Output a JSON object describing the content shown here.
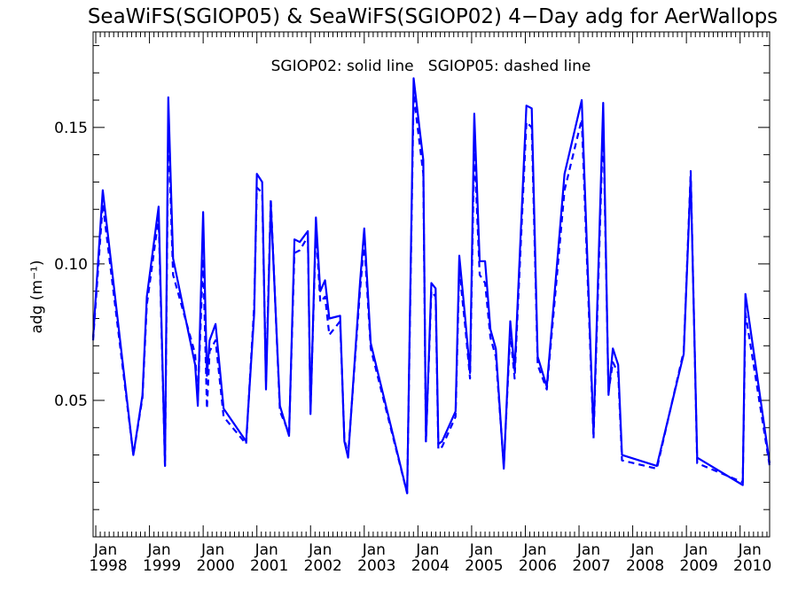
{
  "chart_data": {
    "type": "line",
    "title": "SeaWiFS(SGIOP05) & SeaWiFS(SGIOP02) 4−Day adg for AerWallops",
    "ylabel": "adg (m⁻¹)",
    "xlabel": "",
    "annotation": "SGIOP02: solid line   SGIOP05: dashed line",
    "ylim": [
      0.0,
      0.185
    ],
    "xlim": [
      1997.95,
      2010.55
    ],
    "yticks": [
      {
        "value": 0.05,
        "label": "0.05"
      },
      {
        "value": 0.1,
        "label": "0.10"
      },
      {
        "value": 0.15,
        "label": "0.15"
      }
    ],
    "xticks": [
      {
        "value": 1998,
        "month": "Jan",
        "year": "1998"
      },
      {
        "value": 1999,
        "month": "Jan",
        "year": "1999"
      },
      {
        "value": 2000,
        "month": "Jan",
        "year": "2000"
      },
      {
        "value": 2001,
        "month": "Jan",
        "year": "2001"
      },
      {
        "value": 2002,
        "month": "Jan",
        "year": "2002"
      },
      {
        "value": 2003,
        "month": "Jan",
        "year": "2003"
      },
      {
        "value": 2004,
        "month": "Jan",
        "year": "2004"
      },
      {
        "value": 2005,
        "month": "Jan",
        "year": "2005"
      },
      {
        "value": 2006,
        "month": "Jan",
        "year": "2006"
      },
      {
        "value": 2007,
        "month": "Jan",
        "year": "2007"
      },
      {
        "value": 2008,
        "month": "Jan",
        "year": "2008"
      },
      {
        "value": 2009,
        "month": "Jan",
        "year": "2009"
      },
      {
        "value": 2010,
        "month": "Jan",
        "year": "2010"
      }
    ],
    "line_color": "#0000ff",
    "series": [
      {
        "style": "solid",
        "points": [
          [
            1997.95,
            0.073
          ],
          [
            1998.13,
            0.127
          ],
          [
            1998.7,
            0.03
          ],
          [
            1998.87,
            0.052
          ],
          [
            1998.95,
            0.088
          ],
          [
            1999.17,
            0.121
          ],
          [
            1999.29,
            0.026
          ],
          [
            1999.35,
            0.161
          ],
          [
            1999.44,
            0.102
          ],
          [
            1999.85,
            0.063
          ],
          [
            1999.9,
            0.048
          ],
          [
            2000.0,
            0.119
          ],
          [
            2000.07,
            0.059
          ],
          [
            2000.12,
            0.072
          ],
          [
            2000.23,
            0.078
          ],
          [
            2000.38,
            0.047
          ],
          [
            2000.8,
            0.035
          ],
          [
            2000.95,
            0.082
          ],
          [
            2001.0,
            0.133
          ],
          [
            2001.1,
            0.13
          ],
          [
            2001.17,
            0.054
          ],
          [
            2001.26,
            0.122
          ],
          [
            2001.43,
            0.048
          ],
          [
            2001.6,
            0.037
          ],
          [
            2001.7,
            0.109
          ],
          [
            2001.8,
            0.108
          ],
          [
            2001.95,
            0.112
          ],
          [
            2002.0,
            0.045
          ],
          [
            2002.1,
            0.117
          ],
          [
            2002.18,
            0.09
          ],
          [
            2002.27,
            0.094
          ],
          [
            2002.35,
            0.08
          ],
          [
            2002.55,
            0.081
          ],
          [
            2002.63,
            0.035
          ],
          [
            2002.7,
            0.029
          ],
          [
            2002.92,
            0.093
          ],
          [
            2003.0,
            0.113
          ],
          [
            2003.12,
            0.071
          ],
          [
            2003.8,
            0.016
          ],
          [
            2003.92,
            0.168
          ],
          [
            2004.1,
            0.138
          ],
          [
            2004.15,
            0.035
          ],
          [
            2004.25,
            0.093
          ],
          [
            2004.33,
            0.091
          ],
          [
            2004.38,
            0.034
          ],
          [
            2004.45,
            0.035
          ],
          [
            2004.7,
            0.046
          ],
          [
            2004.77,
            0.103
          ],
          [
            2004.88,
            0.08
          ],
          [
            2004.97,
            0.06
          ],
          [
            2005.05,
            0.155
          ],
          [
            2005.15,
            0.101
          ],
          [
            2005.25,
            0.101
          ],
          [
            2005.35,
            0.076
          ],
          [
            2005.45,
            0.069
          ],
          [
            2005.6,
            0.025
          ],
          [
            2005.72,
            0.079
          ],
          [
            2005.8,
            0.061
          ],
          [
            2006.02,
            0.158
          ],
          [
            2006.12,
            0.157
          ],
          [
            2006.23,
            0.066
          ],
          [
            2006.4,
            0.055
          ],
          [
            2006.73,
            0.133
          ],
          [
            2007.05,
            0.16
          ],
          [
            2007.27,
            0.038
          ],
          [
            2007.45,
            0.159
          ],
          [
            2007.55,
            0.052
          ],
          [
            2007.63,
            0.069
          ],
          [
            2007.73,
            0.063
          ],
          [
            2007.8,
            0.03
          ],
          [
            2008.45,
            0.026
          ],
          [
            2008.95,
            0.067
          ],
          [
            2009.08,
            0.132
          ],
          [
            2009.2,
            0.029
          ],
          [
            2010.05,
            0.019
          ],
          [
            2010.1,
            0.089
          ],
          [
            2010.55,
            0.027
          ]
        ]
      },
      {
        "style": "dashed",
        "points": [
          [
            1997.95,
            0.072
          ],
          [
            1998.13,
            0.122
          ],
          [
            1998.7,
            0.03
          ],
          [
            1998.87,
            0.051
          ],
          [
            1998.95,
            0.085
          ],
          [
            1999.17,
            0.117
          ],
          [
            1999.29,
            0.026
          ],
          [
            1999.35,
            0.15
          ],
          [
            1999.44,
            0.096
          ],
          [
            1999.85,
            0.067
          ],
          [
            1999.9,
            0.05
          ],
          [
            2000.0,
            0.102
          ],
          [
            2000.07,
            0.047
          ],
          [
            2000.12,
            0.068
          ],
          [
            2000.23,
            0.072
          ],
          [
            2000.38,
            0.044
          ],
          [
            2000.8,
            0.034
          ],
          [
            2000.95,
            0.085
          ],
          [
            2001.0,
            0.128
          ],
          [
            2001.1,
            0.126
          ],
          [
            2001.17,
            0.057
          ],
          [
            2001.26,
            0.124
          ],
          [
            2001.43,
            0.046
          ],
          [
            2001.6,
            0.038
          ],
          [
            2001.7,
            0.104
          ],
          [
            2001.8,
            0.105
          ],
          [
            2001.95,
            0.11
          ],
          [
            2002.0,
            0.046
          ],
          [
            2002.1,
            0.113
          ],
          [
            2002.18,
            0.086
          ],
          [
            2002.27,
            0.088
          ],
          [
            2002.35,
            0.074
          ],
          [
            2002.55,
            0.079
          ],
          [
            2002.63,
            0.036
          ],
          [
            2002.7,
            0.03
          ],
          [
            2002.92,
            0.09
          ],
          [
            2003.0,
            0.108
          ],
          [
            2003.12,
            0.069
          ],
          [
            2003.8,
            0.016
          ],
          [
            2003.92,
            0.162
          ],
          [
            2004.1,
            0.133
          ],
          [
            2004.15,
            0.035
          ],
          [
            2004.25,
            0.09
          ],
          [
            2004.33,
            0.088
          ],
          [
            2004.38,
            0.032
          ],
          [
            2004.45,
            0.033
          ],
          [
            2004.7,
            0.044
          ],
          [
            2004.77,
            0.098
          ],
          [
            2004.88,
            0.077
          ],
          [
            2004.97,
            0.058
          ],
          [
            2005.05,
            0.143
          ],
          [
            2005.15,
            0.096
          ],
          [
            2005.25,
            0.093
          ],
          [
            2005.35,
            0.073
          ],
          [
            2005.45,
            0.066
          ],
          [
            2005.6,
            0.026
          ],
          [
            2005.72,
            0.075
          ],
          [
            2005.8,
            0.058
          ],
          [
            2006.02,
            0.152
          ],
          [
            2006.12,
            0.15
          ],
          [
            2006.23,
            0.063
          ],
          [
            2006.4,
            0.054
          ],
          [
            2006.73,
            0.127
          ],
          [
            2007.05,
            0.153
          ],
          [
            2007.27,
            0.036
          ],
          [
            2007.45,
            0.152
          ],
          [
            2007.55,
            0.053
          ],
          [
            2007.63,
            0.064
          ],
          [
            2007.73,
            0.06
          ],
          [
            2007.8,
            0.028
          ],
          [
            2008.45,
            0.025
          ],
          [
            2008.95,
            0.068
          ],
          [
            2009.08,
            0.134
          ],
          [
            2009.2,
            0.027
          ],
          [
            2010.05,
            0.02
          ],
          [
            2010.1,
            0.082
          ],
          [
            2010.55,
            0.026
          ]
        ]
      }
    ]
  }
}
